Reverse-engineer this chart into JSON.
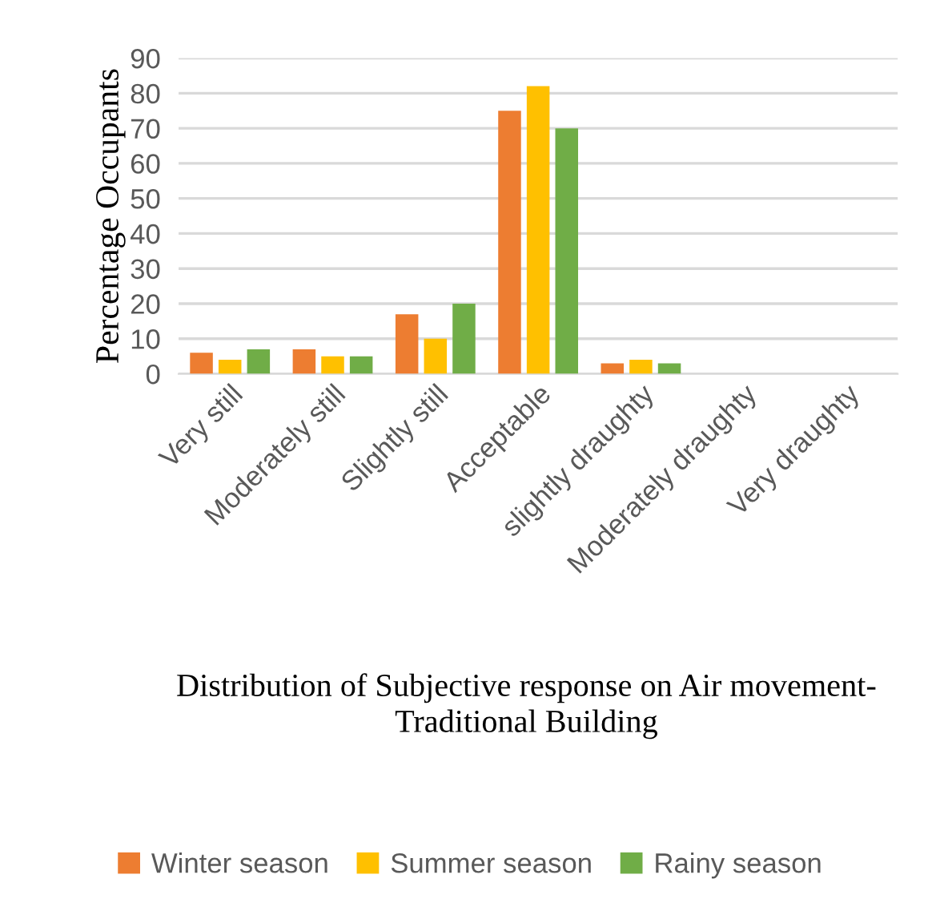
{
  "chart_data": {
    "type": "bar",
    "title": "Distribution of Subjective response on Air movement- Traditional Building",
    "ylabel": "Percentage Occupants",
    "categories": [
      "Very still",
      "Moderately still",
      "Slightly still",
      "Acceptable",
      "slightly draughty",
      "Moderately draughty",
      "Very draughty"
    ],
    "series": [
      {
        "name": "Winter season",
        "color": "#ed7d31",
        "values": [
          6,
          7,
          17,
          75,
          3,
          0,
          0
        ]
      },
      {
        "name": "Summer season",
        "color": "#ffc000",
        "values": [
          4,
          5,
          10,
          82,
          4,
          0,
          0
        ]
      },
      {
        "name": "Rainy season",
        "color": "#70ad47",
        "values": [
          7,
          5,
          20,
          70,
          3,
          0,
          0
        ]
      }
    ],
    "ylim": [
      0,
      90
    ],
    "yticks": [
      0,
      10,
      20,
      30,
      40,
      50,
      60,
      70,
      80,
      90
    ],
    "grid": "y",
    "legend": "bottom"
  }
}
